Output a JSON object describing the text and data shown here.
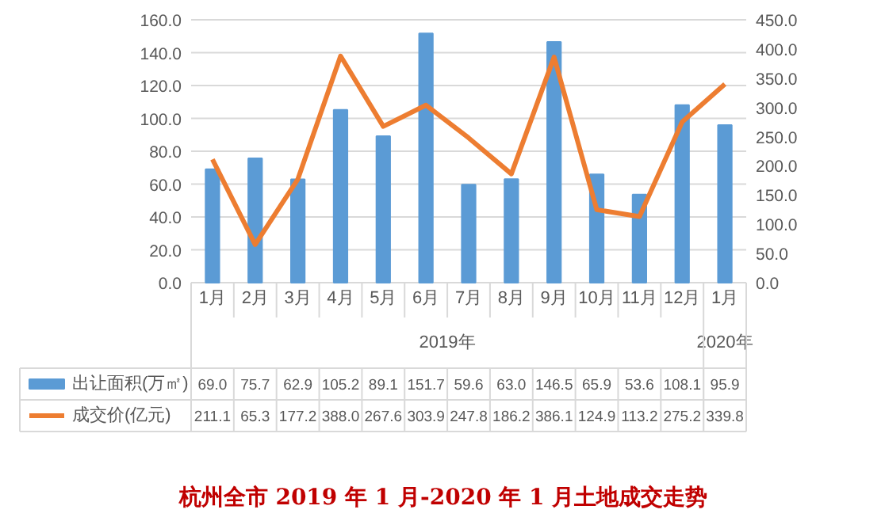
{
  "chart_data": {
    "type": "bar",
    "title": "杭州全市 2019 年 1 月-2020 年 1 月土地成交走势",
    "categories": [
      "1月",
      "2月",
      "3月",
      "4月",
      "5月",
      "6月",
      "7月",
      "8月",
      "9月",
      "10月",
      "11月",
      "12月",
      "1月"
    ],
    "annotations": [
      "2019年",
      "2020年"
    ],
    "series": [
      {
        "name": "出让面积(万㎡)",
        "color": "#5b9bd5",
        "values": [
          69.0,
          75.7,
          62.9,
          105.2,
          89.1,
          151.7,
          59.6,
          63.0,
          146.5,
          65.9,
          53.6,
          108.1,
          95.9
        ],
        "value_labels": [
          "69.0",
          "75.7",
          "62.9",
          "105.2",
          "89.1",
          "151.7",
          "59.6",
          "63.0",
          "146.5",
          "65.9",
          "53.6",
          "108.1",
          "95.9"
        ]
      },
      {
        "name": "成交价(亿元)",
        "type": "line",
        "axis": "y2",
        "color": "#ed7d31",
        "values": [
          211.1,
          65.3,
          177.2,
          388.0,
          267.6,
          303.9,
          247.8,
          186.2,
          386.1,
          124.9,
          113.2,
          275.2,
          339.8
        ],
        "value_labels": [
          "211.1",
          "65.3",
          "177.2",
          "388.0",
          "267.6",
          "303.9",
          "247.8",
          "186.2",
          "386.1",
          "124.9",
          "113.2",
          "275.2",
          "339.8"
        ]
      }
    ],
    "ylim": [
      0,
      160
    ],
    "yticks": [
      {
        "value": 0,
        "label": "0.0"
      },
      {
        "value": 20,
        "label": "20.0"
      },
      {
        "value": 40,
        "label": "40.0"
      },
      {
        "value": 60,
        "label": "60.0"
      },
      {
        "value": 80,
        "label": "80.0"
      },
      {
        "value": 100,
        "label": "100.0"
      },
      {
        "value": 120,
        "label": "120.0"
      },
      {
        "value": 140,
        "label": "140.0"
      },
      {
        "value": 160,
        "label": "160.0"
      }
    ],
    "y2lim": [
      0,
      450
    ],
    "y2ticks": [
      {
        "value": 0,
        "label": "0.0"
      },
      {
        "value": 50,
        "label": "50.0"
      },
      {
        "value": 100,
        "label": "100.0"
      },
      {
        "value": 150,
        "label": "150.0"
      },
      {
        "value": 200,
        "label": "200.0"
      },
      {
        "value": 250,
        "label": "250.0"
      },
      {
        "value": 300,
        "label": "300.0"
      },
      {
        "value": 350,
        "label": "350.0"
      },
      {
        "value": 400,
        "label": "400.0"
      },
      {
        "value": 450,
        "label": "450.0"
      }
    ],
    "grid": "y",
    "legend": "bottom"
  }
}
